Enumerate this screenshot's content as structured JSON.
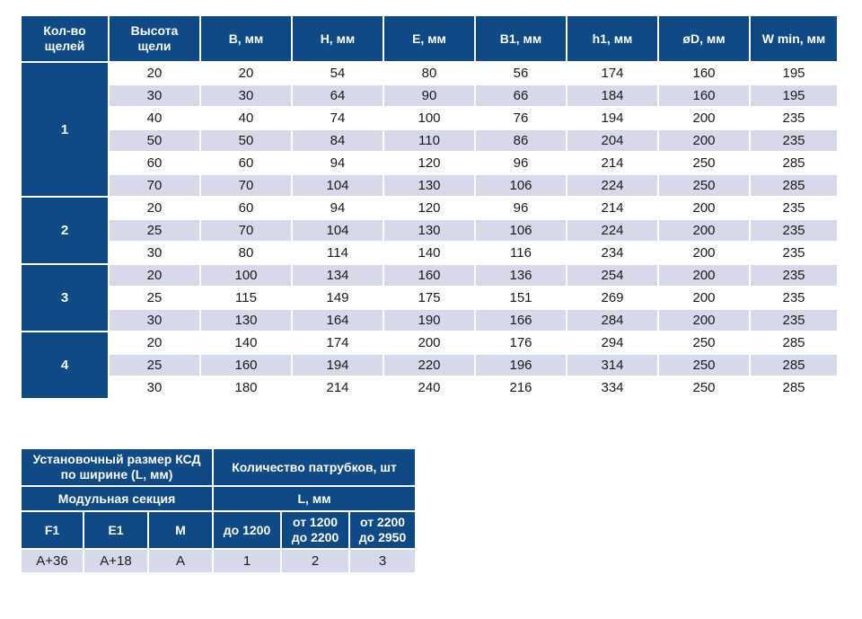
{
  "main_table": {
    "headers": [
      "Кол-во щелей",
      "Высота щели",
      "B, мм",
      "H, мм",
      "E, мм",
      "B1, мм",
      "h1, мм",
      "øD, мм",
      "W min, мм"
    ],
    "header_lines": [
      [
        "Кол-во",
        "щелей"
      ],
      [
        "Высота",
        "щели"
      ]
    ],
    "groups": [
      {
        "count": "1",
        "rows": [
          [
            "20",
            "20",
            "54",
            "80",
            "56",
            "174",
            "160",
            "195"
          ],
          [
            "30",
            "30",
            "64",
            "90",
            "66",
            "184",
            "160",
            "195"
          ],
          [
            "40",
            "40",
            "74",
            "100",
            "76",
            "194",
            "200",
            "235"
          ],
          [
            "50",
            "50",
            "84",
            "110",
            "86",
            "204",
            "200",
            "235"
          ],
          [
            "60",
            "60",
            "94",
            "120",
            "96",
            "214",
            "250",
            "285"
          ],
          [
            "70",
            "70",
            "104",
            "130",
            "106",
            "224",
            "250",
            "285"
          ]
        ]
      },
      {
        "count": "2",
        "rows": [
          [
            "20",
            "60",
            "94",
            "120",
            "96",
            "214",
            "200",
            "235"
          ],
          [
            "25",
            "70",
            "104",
            "130",
            "106",
            "224",
            "200",
            "235"
          ],
          [
            "30",
            "80",
            "114",
            "140",
            "116",
            "234",
            "200",
            "235"
          ]
        ]
      },
      {
        "count": "3",
        "rows": [
          [
            "20",
            "100",
            "134",
            "160",
            "136",
            "254",
            "200",
            "235"
          ],
          [
            "25",
            "115",
            "149",
            "175",
            "151",
            "269",
            "200",
            "235"
          ],
          [
            "30",
            "130",
            "164",
            "190",
            "166",
            "284",
            "200",
            "235"
          ]
        ]
      },
      {
        "count": "4",
        "rows": [
          [
            "20",
            "140",
            "174",
            "200",
            "176",
            "294",
            "250",
            "285"
          ],
          [
            "25",
            "160",
            "194",
            "220",
            "196",
            "314",
            "250",
            "285"
          ],
          [
            "30",
            "180",
            "214",
            "240",
            "216",
            "334",
            "250",
            "285"
          ]
        ]
      }
    ]
  },
  "second_table": {
    "title_lines": [
      "Установочный размер КСД",
      "по ширине (L, мм)"
    ],
    "module_label": "Модульная секция",
    "pipes_label": "Количество патрубков, шт",
    "l_label": "L, мм",
    "col_f1": "F1",
    "col_e1": "E1",
    "col_m": "M",
    "range1": "до 1200",
    "range2_lines": [
      "от 1200",
      "до 2200"
    ],
    "range3_lines": [
      "от 2200",
      "до 2950"
    ],
    "values": [
      "A+36",
      "A+18",
      "A",
      "1",
      "2",
      "3"
    ]
  }
}
